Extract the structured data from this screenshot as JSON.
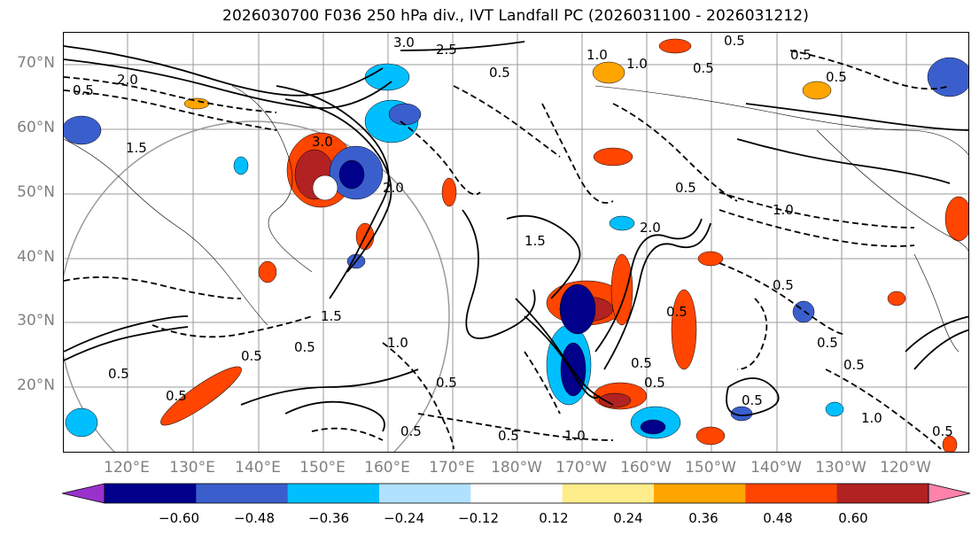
{
  "title": "2026030700 F036 250 hPa div., IVT Landfall PC (2026031100 - 2026031212)",
  "map": {
    "lat_labels": [
      "70°N",
      "60°N",
      "50°N",
      "40°N",
      "30°N",
      "20°N"
    ],
    "lon_labels": [
      "120°E",
      "130°E",
      "140°E",
      "150°E",
      "160°E",
      "170°E",
      "180°W",
      "170°W",
      "160°W",
      "150°W",
      "140°W",
      "130°W",
      "120°W"
    ],
    "contour_labels": [
      "3.0",
      "2.5",
      "0.5",
      "1.0",
      "0.5",
      "0.5",
      "2.0",
      "1.5",
      "0.5",
      "0.5",
      "3.0",
      "2.0",
      "1.5",
      "0.5",
      "1.0",
      "0.5",
      "0.5",
      "0.5",
      "0.5",
      "1.5",
      "0.5",
      "1.0",
      "0.5",
      "0.5",
      "1.0",
      "0.5",
      "0.5",
      "0.5",
      "0.5",
      "0.5",
      "1.0",
      "0.5",
      "2.0",
      "0.5",
      "1.0",
      "0.5",
      "0.5"
    ]
  },
  "colorbar": {
    "colors": [
      "#9932cc",
      "#00008b",
      "#3a5fcd",
      "#00bfff",
      "#b0e2ff",
      "#ffffff",
      "#ffec8b",
      "#ffa500",
      "#ff4500",
      "#b22222",
      "#ff82ab"
    ],
    "tick_labels": [
      "−0.60",
      "−0.48",
      "−0.36",
      "−0.24",
      "−0.12",
      "0.12",
      "0.24",
      "0.36",
      "0.48",
      "0.60"
    ]
  }
}
